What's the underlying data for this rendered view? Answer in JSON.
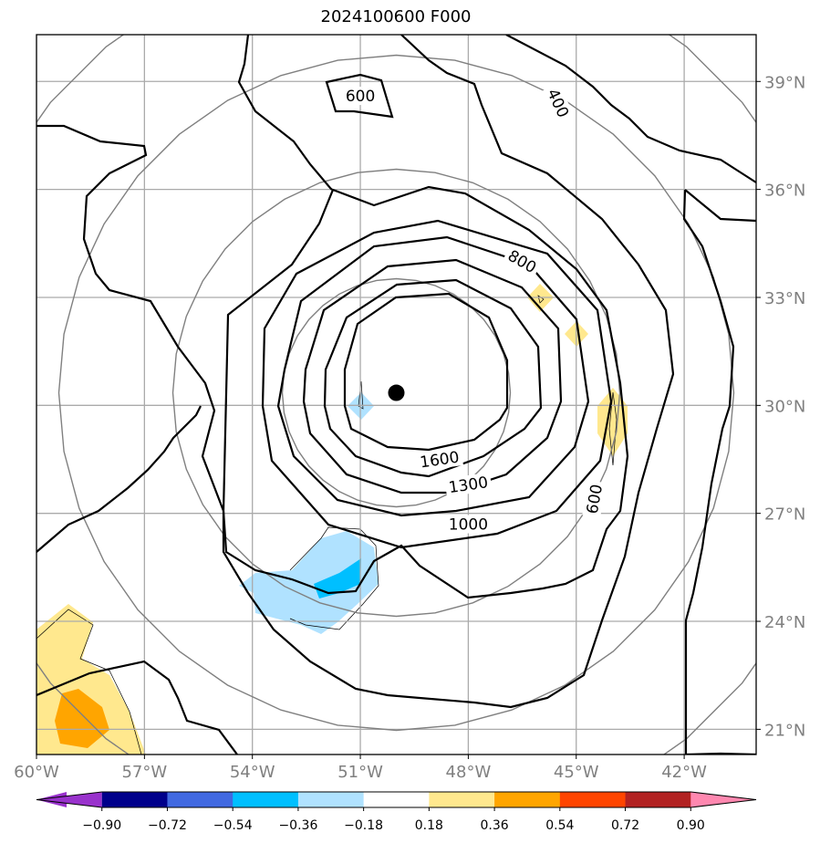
{
  "title": "2024100600 F000",
  "map": {
    "lon_range": [
      -60,
      -40
    ],
    "lat_range": [
      20.3,
      40.3
    ],
    "lon_ticks": [
      {
        "value": -60,
        "label": "60°W"
      },
      {
        "value": -57,
        "label": "57°W"
      },
      {
        "value": -54,
        "label": "54°W"
      },
      {
        "value": -51,
        "label": "51°W"
      },
      {
        "value": -48,
        "label": "48°W"
      },
      {
        "value": -45,
        "label": "45°W"
      },
      {
        "value": -42,
        "label": "42°W"
      }
    ],
    "lat_ticks": [
      {
        "value": 39,
        "label": "39°N"
      },
      {
        "value": 36,
        "label": "36°N"
      },
      {
        "value": 33,
        "label": "33°N"
      },
      {
        "value": 30,
        "label": "30°N"
      },
      {
        "value": 27,
        "label": "27°N"
      },
      {
        "value": 24,
        "label": "24°N"
      },
      {
        "value": 21,
        "label": "21°N"
      }
    ],
    "storm_center": {
      "lon": -50.0,
      "lat": 30.35
    },
    "contour_labels": [
      {
        "text": "600",
        "lon": -51.0,
        "lat": 38.6,
        "rotate": 0
      },
      {
        "text": "400",
        "lon": -45.5,
        "lat": 38.4,
        "rotate": 65
      },
      {
        "text": "800",
        "lon": -46.5,
        "lat": 34.0,
        "rotate": 30
      },
      {
        "text": "1600",
        "lon": -48.8,
        "lat": 28.5,
        "rotate": -8
      },
      {
        "text": "1300",
        "lon": -48.0,
        "lat": 27.8,
        "rotate": -8
      },
      {
        "text": "1000",
        "lon": -48.0,
        "lat": 26.7,
        "rotate": 0
      },
      {
        "text": "600",
        "lon": -44.5,
        "lat": 27.4,
        "rotate": -80
      }
    ]
  },
  "colorbar": {
    "colors": [
      "#9932cc",
      "#00008b",
      "#4169e1",
      "#00bfff",
      "#b0e2ff",
      "#ffffff",
      "#ffe88e",
      "#ffa500",
      "#ff4500",
      "#b22222",
      "#ff88b0"
    ],
    "tick_labels": [
      "−0.90",
      "−0.72",
      "−0.54",
      "−0.36",
      "−0.18",
      "0.18",
      "0.36",
      "0.54",
      "0.72",
      "0.90"
    ]
  }
}
